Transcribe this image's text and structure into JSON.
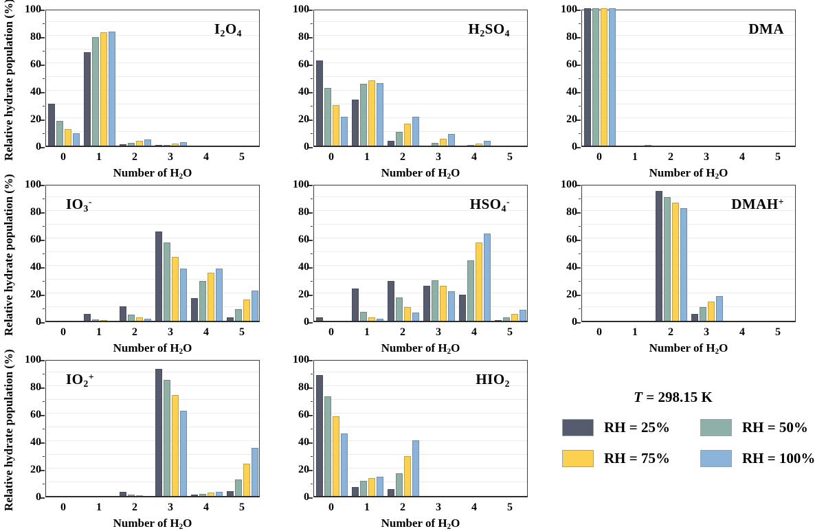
{
  "figure": {
    "background": "#ffffff",
    "frame_color": "#3b3b3b",
    "grid_color": "#ebebeb"
  },
  "axes": {
    "ylabel": "Relative hydrate population (%)",
    "xlabel_parts": [
      {
        "text": "Number of H"
      },
      {
        "text": "2",
        "style": "sub"
      },
      {
        "text": "O"
      }
    ],
    "y_ticks": [
      0,
      20,
      40,
      60,
      80,
      100
    ],
    "y_minor_ticks": [
      10,
      30,
      50,
      70,
      90
    ],
    "x_ticks": [
      "0",
      "1",
      "2",
      "3",
      "4",
      "5"
    ],
    "ylim": [
      0,
      100
    ],
    "grid": "horizontal every 10"
  },
  "legend": {
    "temperature_parts": [
      {
        "text": "T",
        "style": "italic"
      },
      {
        "text": " = 298.15 K"
      }
    ],
    "entries": [
      {
        "label": "RH = 25%",
        "color": "#565b6e"
      },
      {
        "label": "RH = 50%",
        "color": "#8fb0a7"
      },
      {
        "label": "RH = 75%",
        "color": "#fbd14f"
      },
      {
        "label": "RH = 100%",
        "color": "#8cb3da"
      }
    ],
    "swatch_border_color": "#98a0ab",
    "position": "bottom-right cell"
  },
  "chart_data": [
    {
      "id": "I2O4",
      "type": "bar",
      "row": 0,
      "col": 0,
      "title_align": "right",
      "title_parts": [
        {
          "text": "I"
        },
        {
          "text": "2",
          "style": "sub"
        },
        {
          "text": "O"
        },
        {
          "text": "4",
          "style": "sub"
        }
      ],
      "categories": [
        "0",
        "1",
        "2",
        "3",
        "4",
        "5"
      ],
      "series": [
        {
          "name": "RH = 25%",
          "values": [
            30.5,
            68,
            1,
            0.5,
            0,
            0
          ]
        },
        {
          "name": "RH = 50%",
          "values": [
            18,
            79,
            2,
            0.5,
            0,
            0
          ]
        },
        {
          "name": "RH = 75%",
          "values": [
            12,
            82.5,
            3.5,
            1.5,
            0,
            0
          ]
        },
        {
          "name": "RH = 100%",
          "values": [
            9,
            83,
            4.5,
            2.5,
            0,
            0
          ]
        }
      ],
      "ylim": [
        0,
        100
      ]
    },
    {
      "id": "H2SO4",
      "type": "bar",
      "row": 0,
      "col": 1,
      "title_align": "right",
      "title_parts": [
        {
          "text": "H"
        },
        {
          "text": "2",
          "style": "sub"
        },
        {
          "text": "SO"
        },
        {
          "text": "4",
          "style": "sub"
        }
      ],
      "categories": [
        "0",
        "1",
        "2",
        "3",
        "4",
        "5"
      ],
      "series": [
        {
          "name": "RH = 25%",
          "values": [
            62,
            33.5,
            3.5,
            0,
            0,
            0
          ]
        },
        {
          "name": "RH = 50%",
          "values": [
            42,
            45,
            10,
            2,
            0.5,
            0
          ]
        },
        {
          "name": "RH = 75%",
          "values": [
            29.5,
            47.5,
            16,
            5,
            1.5,
            0
          ]
        },
        {
          "name": "RH = 100%",
          "values": [
            21,
            45.5,
            21,
            8.5,
            3.5,
            0
          ]
        }
      ],
      "ylim": [
        0,
        100
      ]
    },
    {
      "id": "DMA",
      "type": "bar",
      "row": 0,
      "col": 2,
      "title_align": "right",
      "title_parts": [
        {
          "text": "DMA"
        }
      ],
      "categories": [
        "0",
        "1",
        "2",
        "3",
        "4",
        "5"
      ],
      "series": [
        {
          "name": "RH = 25%",
          "values": [
            100,
            0,
            0,
            0,
            0,
            0
          ]
        },
        {
          "name": "RH = 50%",
          "values": [
            100,
            0,
            0,
            0,
            0,
            0
          ]
        },
        {
          "name": "RH = 75%",
          "values": [
            100,
            0,
            0,
            0,
            0,
            0
          ]
        },
        {
          "name": "RH = 100%",
          "values": [
            100,
            0.5,
            0,
            0,
            0,
            0
          ]
        }
      ],
      "ylim": [
        0,
        100
      ]
    },
    {
      "id": "IO3-",
      "type": "bar",
      "row": 1,
      "col": 0,
      "title_align": "left",
      "title_parts": [
        {
          "text": "IO"
        },
        {
          "text": "3",
          "style": "sub"
        },
        {
          "text": "-",
          "style": "sup"
        }
      ],
      "categories": [
        "0",
        "1",
        "2",
        "3",
        "4",
        "5"
      ],
      "series": [
        {
          "name": "RH = 25%",
          "values": [
            0,
            5,
            10.5,
            65,
            16.5,
            2.5
          ]
        },
        {
          "name": "RH = 50%",
          "values": [
            0,
            1,
            4.5,
            57,
            29,
            8.5
          ]
        },
        {
          "name": "RH = 75%",
          "values": [
            0,
            0.5,
            2.5,
            46.5,
            35,
            15.5
          ]
        },
        {
          "name": "RH = 100%",
          "values": [
            0,
            0,
            1.5,
            38,
            38,
            22
          ]
        }
      ],
      "ylim": [
        0,
        100
      ]
    },
    {
      "id": "HSO4-",
      "type": "bar",
      "row": 1,
      "col": 1,
      "title_align": "right",
      "title_parts": [
        {
          "text": "HSO"
        },
        {
          "text": "4",
          "style": "sub"
        },
        {
          "text": "-",
          "style": "sup"
        }
      ],
      "categories": [
        "0",
        "1",
        "2",
        "3",
        "4",
        "5"
      ],
      "series": [
        {
          "name": "RH = 25%",
          "values": [
            2.5,
            23.5,
            29,
            25.5,
            19,
            0.5
          ]
        },
        {
          "name": "RH = 50%",
          "values": [
            0,
            6.5,
            17,
            29.5,
            44,
            2.5
          ]
        },
        {
          "name": "RH = 75%",
          "values": [
            0,
            2.5,
            10,
            25.5,
            57,
            5
          ]
        },
        {
          "name": "RH = 100%",
          "values": [
            0,
            1.5,
            6,
            21.5,
            63.5,
            8
          ]
        }
      ],
      "ylim": [
        0,
        100
      ]
    },
    {
      "id": "DMAH+",
      "type": "bar",
      "row": 1,
      "col": 2,
      "title_align": "right",
      "title_parts": [
        {
          "text": "DMAH"
        },
        {
          "text": "+",
          "style": "sup"
        }
      ],
      "categories": [
        "0",
        "1",
        "2",
        "3",
        "4",
        "5"
      ],
      "series": [
        {
          "name": "RH = 25%",
          "values": [
            0,
            0,
            94.5,
            5,
            0,
            0
          ]
        },
        {
          "name": "RH = 50%",
          "values": [
            0,
            0,
            90,
            10,
            0,
            0
          ]
        },
        {
          "name": "RH = 75%",
          "values": [
            0,
            0,
            86,
            14,
            0,
            0
          ]
        },
        {
          "name": "RH = 100%",
          "values": [
            0,
            0,
            82,
            18,
            0,
            0
          ]
        }
      ],
      "ylim": [
        0,
        100
      ]
    },
    {
      "id": "IO2+",
      "type": "bar",
      "row": 2,
      "col": 0,
      "title_align": "left",
      "title_parts": [
        {
          "text": "IO"
        },
        {
          "text": "2",
          "style": "sub"
        },
        {
          "text": "+",
          "style": "sup"
        }
      ],
      "categories": [
        "0",
        "1",
        "2",
        "3",
        "4",
        "5"
      ],
      "series": [
        {
          "name": "RH = 25%",
          "values": [
            0,
            0,
            3,
            92.5,
            1,
            3.5
          ]
        },
        {
          "name": "RH = 50%",
          "values": [
            0,
            0,
            1,
            84.5,
            1.5,
            12
          ]
        },
        {
          "name": "RH = 75%",
          "values": [
            0,
            0,
            0.5,
            73.5,
            2.5,
            23.5
          ]
        },
        {
          "name": "RH = 100%",
          "values": [
            0,
            0,
            0,
            62,
            3,
            35
          ]
        }
      ],
      "ylim": [
        0,
        100
      ]
    },
    {
      "id": "HIO2",
      "type": "bar",
      "row": 2,
      "col": 1,
      "title_align": "right",
      "title_parts": [
        {
          "text": "HIO"
        },
        {
          "text": "2",
          "style": "sub"
        }
      ],
      "categories": [
        "0",
        "1",
        "2",
        "3",
        "4",
        "5"
      ],
      "series": [
        {
          "name": "RH = 25%",
          "values": [
            88,
            6.5,
            5,
            0,
            0,
            0
          ]
        },
        {
          "name": "RH = 50%",
          "values": [
            72.5,
            11,
            16.5,
            0,
            0,
            0
          ]
        },
        {
          "name": "RH = 75%",
          "values": [
            58,
            13,
            29,
            0,
            0,
            0
          ]
        },
        {
          "name": "RH = 100%",
          "values": [
            45.5,
            14,
            40.5,
            0,
            0,
            0
          ]
        }
      ],
      "ylim": [
        0,
        100
      ]
    }
  ]
}
